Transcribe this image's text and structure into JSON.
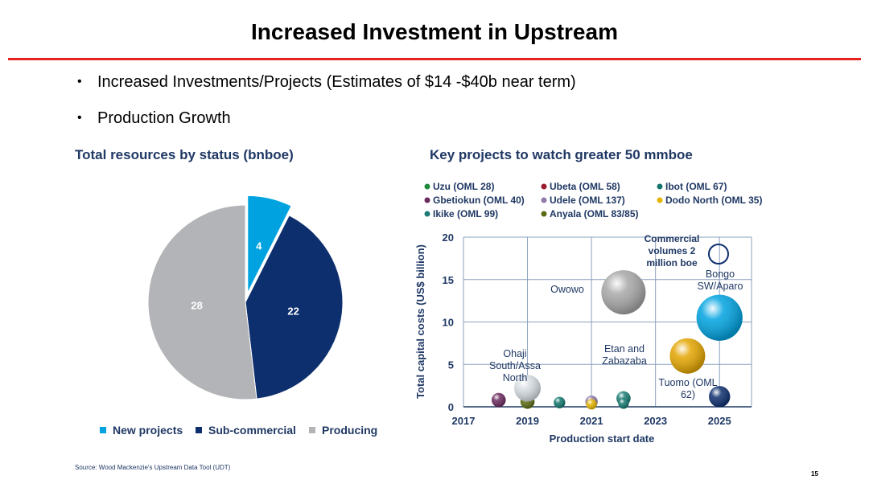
{
  "header": {
    "title": "Increased Investment in Upstream"
  },
  "bullets": [
    "Increased Investments/Projects (Estimates of $14 -$40b near term)",
    "Production Growth"
  ],
  "footer": {
    "source": "Source: Wood Mackenzie's Upstream Data Tool (UDT)",
    "page": "15"
  },
  "chart_data": [
    {
      "type": "pie",
      "title": "Total resources by status (bnboe)",
      "categories": [
        "New projects",
        "Sub-commercial",
        "Producing"
      ],
      "values": [
        4,
        22,
        28
      ],
      "colors": [
        "#00a3e0",
        "#0d2f6e",
        "#b3b4b7"
      ],
      "exploded": "New projects",
      "legend": "bottom"
    },
    {
      "type": "scatter",
      "subtype": "bubble",
      "title": "Key projects to watch greater 50 mmboe",
      "xlabel": "Production start date",
      "ylabel": "Total capital costs (US$ billion)",
      "xlim": [
        2017,
        2026
      ],
      "ylim": [
        0,
        20
      ],
      "xticks": [
        "2017",
        "2019",
        "2021",
        "2023",
        "2025"
      ],
      "yticks": [
        "0",
        "5",
        "10",
        "15",
        "20"
      ],
      "grid": true,
      "legend": "top",
      "legend_items": [
        {
          "name": "Uzu (OML 28)",
          "color": "#1f8a3c"
        },
        {
          "name": "Ubeta (OML 58)",
          "color": "#9b1b30"
        },
        {
          "name": "Ibot (OML 67)",
          "color": "#12766e"
        },
        {
          "name": "Gbetiokun (OML 40)",
          "color": "#6b2a5e"
        },
        {
          "name": "Udele (OML 137)",
          "color": "#8e7ca8"
        },
        {
          "name": "Dodo North (OML 35)",
          "color": "#e3b400"
        },
        {
          "name": "Ikike (OML 99)",
          "color": "#1a7c74"
        },
        {
          "name": "Anyala (OML 83/85)",
          "color": "#5a6a12"
        }
      ],
      "size_note": "Commercial volumes 2 million boe",
      "points": [
        {
          "name": "",
          "x": 2018.1,
          "y": 0.8,
          "size": 0.8,
          "color": "#6b2a5e"
        },
        {
          "name": "",
          "x": 2019.0,
          "y": 0.6,
          "size": 0.8,
          "color": "#5a6a12"
        },
        {
          "name": "Ohaji South/Assa North",
          "x": 2019.0,
          "y": 2.2,
          "size": 1.5,
          "color": "#d7dde3"
        },
        {
          "name": "",
          "x": 2020.0,
          "y": 0.5,
          "size": 0.65,
          "color": "#12766e"
        },
        {
          "name": "",
          "x": 2021.0,
          "y": 0.6,
          "size": 0.7,
          "color": "#8e7ca8"
        },
        {
          "name": "",
          "x": 2021.0,
          "y": 0.3,
          "size": 0.6,
          "color": "#e3b400"
        },
        {
          "name": "",
          "x": 2022.0,
          "y": 1.0,
          "size": 0.8,
          "color": "#1a7c74"
        },
        {
          "name": "",
          "x": 2022.0,
          "y": 0.4,
          "size": 0.6,
          "color": "#12766e"
        },
        {
          "name": "Etan and Zabazaba",
          "x": 2022.0,
          "y": 0.0,
          "size": 0.0,
          "color": "#12766e"
        },
        {
          "name": "Owowo",
          "x": 2022.0,
          "y": 13.5,
          "size": 2.5,
          "color": "#a8a8a8"
        },
        {
          "name": "Tuomo (OML 62)",
          "x": 2024.0,
          "y": 6.0,
          "size": 2.0,
          "color": "#e3a500"
        },
        {
          "name": "Bongo SW/Aparo",
          "x": 2025.0,
          "y": 10.5,
          "size": 2.6,
          "color": "#00a3e0"
        },
        {
          "name": "",
          "x": 2025.0,
          "y": 1.2,
          "size": 1.2,
          "color": "#0d2f6e"
        }
      ]
    }
  ]
}
